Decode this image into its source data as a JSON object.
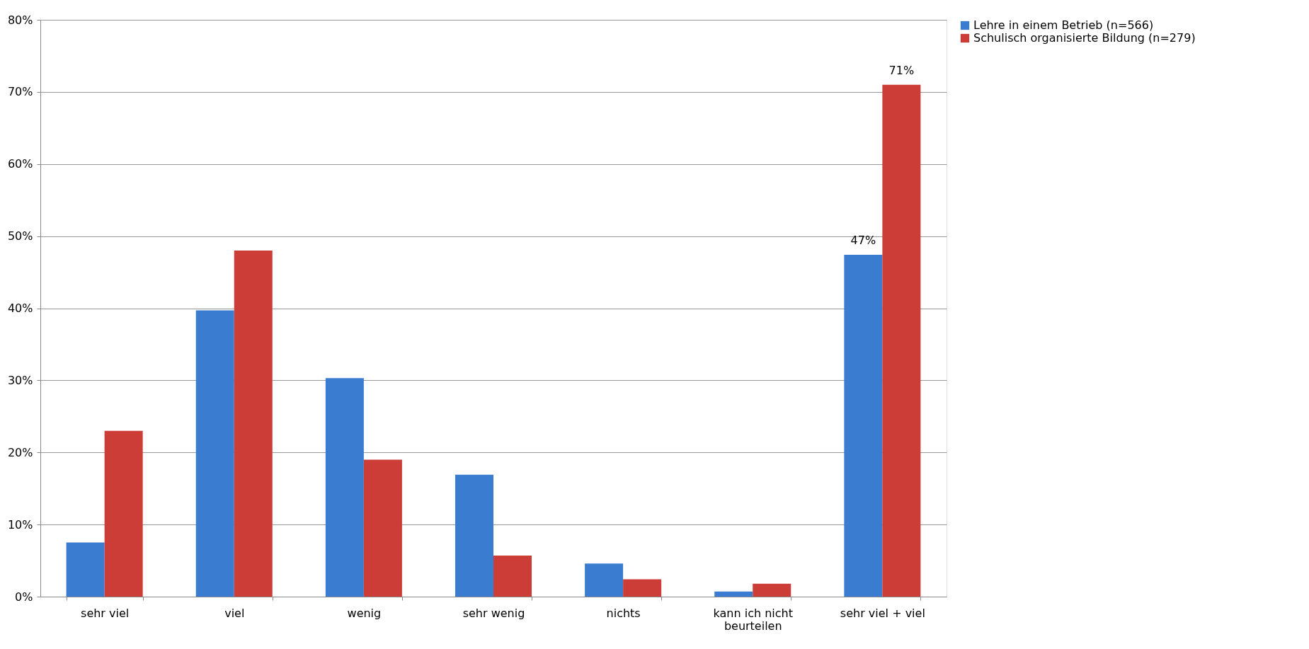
{
  "chart_data": {
    "type": "bar",
    "categories": [
      "sehr viel",
      "viel",
      "wenig",
      "sehr wenig",
      "nichts",
      "kann ich nicht beurteilen",
      "sehr viel + viel"
    ],
    "series": [
      {
        "name": "Lehre in einem Betrieb (n=566)",
        "color": "#3a7dd0",
        "values": [
          7.5,
          39.7,
          30.3,
          16.9,
          4.6,
          0.7,
          47.4
        ],
        "value_labels": [
          null,
          null,
          null,
          null,
          null,
          null,
          "47%"
        ]
      },
      {
        "name": "Schulisch organisierte Bildung (n=279)",
        "color": "#cd3d38",
        "values": [
          23,
          48,
          19,
          5.7,
          2.4,
          1.8,
          71
        ],
        "value_labels": [
          null,
          null,
          null,
          null,
          null,
          null,
          "71%"
        ]
      }
    ],
    "ylim": [
      0,
      80
    ],
    "yticks": [
      {
        "value": 0,
        "label": "0%"
      },
      {
        "value": 10,
        "label": "10%"
      },
      {
        "value": 20,
        "label": "20%"
      },
      {
        "value": 30,
        "label": "30%"
      },
      {
        "value": 40,
        "label": "40%"
      },
      {
        "value": 50,
        "label": "50%"
      },
      {
        "value": 60,
        "label": "60%"
      },
      {
        "value": 70,
        "label": "70%"
      },
      {
        "value": 80,
        "label": "80%"
      }
    ],
    "grid": "y",
    "legend": "right"
  }
}
